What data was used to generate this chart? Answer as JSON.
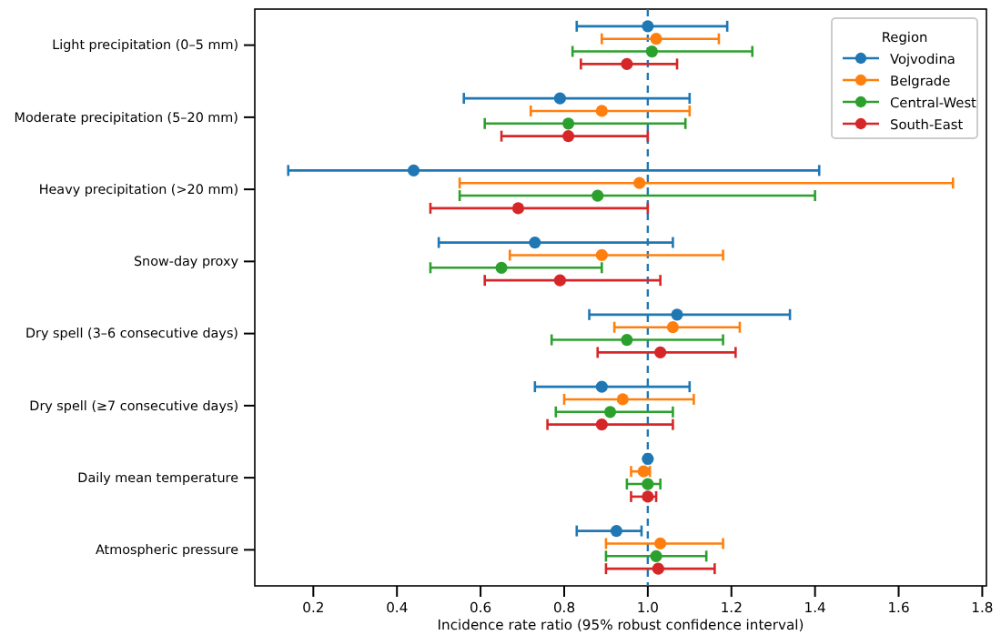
{
  "chart_data": {
    "type": "scatter",
    "orientation": "horizontal",
    "xlabel": "Incidence rate ratio (95% robust confidence interval)",
    "legend_title": "Region",
    "legend": "top right",
    "marker": "circle",
    "grid": false,
    "categories": [
      "Light precipitation (0–5 mm)",
      "Moderate precipitation (5–20 mm)",
      "Heavy precipitation (>20 mm)",
      "Snow-day proxy",
      "Dry spell (3–6 consecutive days)",
      "Dry spell (≥7 consecutive days)",
      "Daily mean temperature",
      "Atmospheric pressure"
    ],
    "xlim": [
      0.06,
      1.81
    ],
    "xticks": [
      0.2,
      0.4,
      0.6,
      0.8,
      {
        "value": 1,
        "label": "1.0"
      },
      1.2,
      1.4,
      1.6,
      1.8
    ],
    "series": [
      {
        "name": "Vojvodina",
        "color": "#1f77b4",
        "values": [
          1.0,
          0.79,
          0.44,
          0.73,
          1.07,
          0.89,
          1.0,
          0.925
        ],
        "errors": [
          [
            0.83,
            1.19
          ],
          [
            0.56,
            1.1
          ],
          [
            0.14,
            1.41
          ],
          [
            0.5,
            1.06
          ],
          [
            0.86,
            1.34
          ],
          [
            0.73,
            1.1
          ],
          [
            0.995,
            1.005
          ],
          [
            0.83,
            0.985
          ]
        ]
      },
      {
        "name": "Belgrade",
        "color": "#ff7f0e",
        "values": [
          1.02,
          0.89,
          0.98,
          0.89,
          1.06,
          0.94,
          0.99,
          1.03
        ],
        "errors": [
          [
            0.89,
            1.17
          ],
          [
            0.72,
            1.1
          ],
          [
            0.55,
            1.73
          ],
          [
            0.67,
            1.18
          ],
          [
            0.92,
            1.22
          ],
          [
            0.8,
            1.11
          ],
          [
            0.96,
            1.005
          ],
          [
            0.9,
            1.18
          ]
        ]
      },
      {
        "name": "Central-West",
        "color": "#2ca02c",
        "values": [
          1.01,
          0.81,
          0.88,
          0.65,
          0.95,
          0.91,
          1.0,
          1.02
        ],
        "errors": [
          [
            0.82,
            1.25
          ],
          [
            0.61,
            1.09
          ],
          [
            0.55,
            1.4
          ],
          [
            0.48,
            0.89
          ],
          [
            0.77,
            1.18
          ],
          [
            0.78,
            1.06
          ],
          [
            0.95,
            1.03
          ],
          [
            0.9,
            1.14
          ]
        ]
      },
      {
        "name": "South-East",
        "color": "#d62728",
        "values": [
          0.95,
          0.81,
          0.69,
          0.79,
          1.03,
          0.89,
          1.0,
          1.025
        ],
        "errors": [
          [
            0.84,
            1.07
          ],
          [
            0.65,
            1.0
          ],
          [
            0.48,
            1.0
          ],
          [
            0.61,
            1.03
          ],
          [
            0.88,
            1.21
          ],
          [
            0.76,
            1.06
          ],
          [
            0.96,
            1.02
          ],
          [
            0.9,
            1.16
          ]
        ]
      }
    ],
    "ref_lines": [
      {
        "axis": "x",
        "value": 1.0,
        "color": "#1f77b4",
        "line_style": "dashed"
      }
    ]
  }
}
